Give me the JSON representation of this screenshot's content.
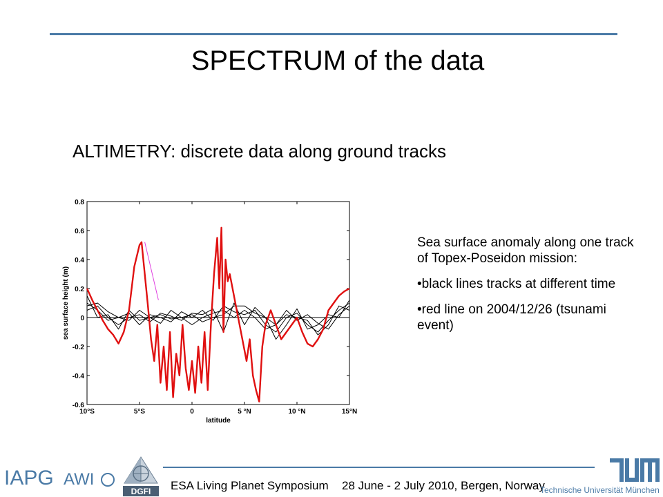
{
  "slide": {
    "title": "SPECTRUM of the data",
    "subtitle": "ALTIMETRY: discrete data along ground tracks"
  },
  "description": {
    "intro": "Sea surface anomaly along one track of Topex-Poseidon mission:",
    "bullet1": "•black lines tracks at different time",
    "bullet2": "•red line on 2004/12/26 (tsunami event)"
  },
  "footer": {
    "event": "ESA Living Planet Symposium",
    "dates": "28 June - 2 July 2010, Bergen, Norway",
    "iapg": "IAPG",
    "awi": "AWI",
    "dgfi": "DGFI",
    "tum_name": "Technische Universität München"
  },
  "colors": {
    "accent": "#4a7aa6",
    "tsunami": "#e01010",
    "gap": "#e040e0",
    "tracks": "#000000"
  },
  "chart_data": {
    "type": "line",
    "xlabel": "latitude",
    "ylabel": "sea surface height (m)",
    "xlim": [
      -10,
      15
    ],
    "ylim": [
      -0.6,
      0.8
    ],
    "xticks": [
      {
        "v": -10,
        "label": "10°S"
      },
      {
        "v": -5,
        "label": "5°S"
      },
      {
        "v": 0,
        "label": "0"
      },
      {
        "v": 5,
        "label": "5 °N"
      },
      {
        "v": 10,
        "label": "10 °N"
      },
      {
        "v": 15,
        "label": "15°N"
      }
    ],
    "yticks": [
      {
        "v": -0.6,
        "label": "-0.6"
      },
      {
        "v": -0.4,
        "label": "-0.4"
      },
      {
        "v": -0.2,
        "label": "-0.2"
      },
      {
        "v": 0,
        "label": "0"
      },
      {
        "v": 0.2,
        "label": "0.2"
      },
      {
        "v": 0.4,
        "label": "0.4"
      },
      {
        "v": 0.6,
        "label": "0.6"
      },
      {
        "v": 0.8,
        "label": "0.8"
      }
    ],
    "zero_line": true,
    "series": [
      {
        "role": "tsunami",
        "x": [
          -10,
          -9.5,
          -9,
          -8.5,
          -8,
          -7.5,
          -7,
          -6.5,
          -6,
          -5.5,
          -5,
          -4.8,
          -4.5,
          -4.2,
          -3.9,
          -3.6,
          -3.3,
          -3,
          -2.7,
          -2.4,
          -2.1,
          -1.8,
          -1.5,
          -1.2,
          -0.9,
          -0.6,
          -0.3,
          0,
          0.3,
          0.6,
          0.9,
          1.2,
          1.5,
          1.8,
          2.1,
          2.4,
          2.6,
          2.8,
          3.0,
          3.2,
          3.4,
          3.6,
          5.2,
          5.5,
          5.8,
          6.1,
          6.4,
          6.7,
          7,
          7.5,
          8,
          8.5,
          9,
          9.5,
          10,
          10.5,
          11,
          11.5,
          12,
          12.5,
          13,
          13.5,
          14,
          14.5,
          15
        ],
        "y": [
          0.2,
          0.12,
          0.05,
          -0.02,
          -0.08,
          -0.12,
          -0.18,
          -0.1,
          0.05,
          0.35,
          0.5,
          0.52,
          0.3,
          0.08,
          -0.15,
          -0.3,
          -0.05,
          -0.45,
          -0.2,
          -0.5,
          -0.1,
          -0.55,
          -0.25,
          -0.4,
          -0.05,
          -0.35,
          -0.5,
          -0.3,
          -0.52,
          -0.2,
          -0.45,
          -0.1,
          -0.5,
          -0.05,
          0.3,
          0.55,
          0.2,
          0.62,
          -0.1,
          0.4,
          0.25,
          0.3,
          -0.3,
          -0.15,
          -0.4,
          -0.5,
          -0.58,
          -0.2,
          -0.05,
          0.05,
          -0.05,
          -0.15,
          -0.1,
          -0.05,
          0.0,
          -0.1,
          -0.18,
          -0.2,
          -0.15,
          -0.08,
          0.05,
          0.1,
          0.15,
          0.18,
          0.2
        ]
      },
      {
        "role": "gap",
        "x": [
          -4.5,
          -3.2,
          3.6,
          5.2
        ],
        "y": [
          0.52,
          0.12,
          0.3,
          -0.3
        ]
      },
      {
        "role": "track",
        "x": [
          -10,
          -9,
          -8,
          -7,
          -6,
          -5,
          -4,
          -3,
          -2,
          -1,
          0,
          1,
          2,
          3,
          4,
          5,
          6,
          7,
          8,
          9,
          10,
          11,
          12,
          13,
          14,
          15
        ],
        "y": [
          0.1,
          0.05,
          -0.02,
          0.0,
          0.03,
          -0.05,
          0.02,
          0.0,
          -0.03,
          0.04,
          0.0,
          0.05,
          -0.02,
          0.08,
          0.04,
          0.02,
          0.05,
          -0.05,
          -0.1,
          0.0,
          0.03,
          -0.05,
          -0.1,
          -0.02,
          0.05,
          0.1
        ]
      },
      {
        "role": "track",
        "x": [
          -10,
          -9,
          -8,
          -7,
          -6,
          -5,
          -4,
          -3,
          -2,
          -1,
          0,
          1,
          2,
          3,
          4,
          5,
          6,
          7,
          8,
          9,
          10,
          11,
          12,
          13,
          14,
          15
        ],
        "y": [
          0.05,
          0.08,
          0.0,
          -0.05,
          0.0,
          0.02,
          -0.03,
          0.03,
          0.01,
          -0.02,
          0.03,
          0.02,
          0.06,
          -0.1,
          0.1,
          -0.05,
          0.07,
          0.0,
          -0.15,
          -0.05,
          0.06,
          -0.08,
          -0.05,
          0.02,
          0.0,
          0.12
        ]
      },
      {
        "role": "track",
        "x": [
          -10,
          -9,
          -8,
          -7,
          -6,
          -5,
          -4,
          -3,
          -2,
          -1,
          0,
          1,
          2,
          3,
          4,
          5,
          6,
          7,
          8,
          9,
          10,
          11,
          12,
          13,
          14,
          15
        ],
        "y": [
          0.15,
          0.0,
          0.02,
          -0.08,
          0.05,
          -0.02,
          0.0,
          -0.04,
          0.05,
          0.0,
          -0.05,
          0.0,
          0.03,
          0.05,
          0.0,
          0.05,
          0.0,
          -0.08,
          -0.05,
          0.02,
          0.0,
          -0.02,
          -0.12,
          -0.05,
          0.08,
          0.05
        ]
      },
      {
        "role": "track",
        "x": [
          -10,
          -9,
          -8,
          -7,
          -6,
          -5,
          -4,
          -3,
          -2,
          -1,
          0,
          1,
          2,
          3,
          4,
          5,
          6,
          7,
          8,
          9,
          10,
          11,
          12,
          13,
          14,
          15
        ],
        "y": [
          0.08,
          0.1,
          0.04,
          0.0,
          -0.02,
          0.05,
          0.0,
          0.02,
          -0.01,
          0.0,
          0.02,
          -0.03,
          0.0,
          0.02,
          0.08,
          0.08,
          0.03,
          0.0,
          -0.05,
          0.05,
          -0.02,
          0.02,
          -0.04,
          -0.08,
          0.02,
          0.08
        ]
      }
    ]
  }
}
